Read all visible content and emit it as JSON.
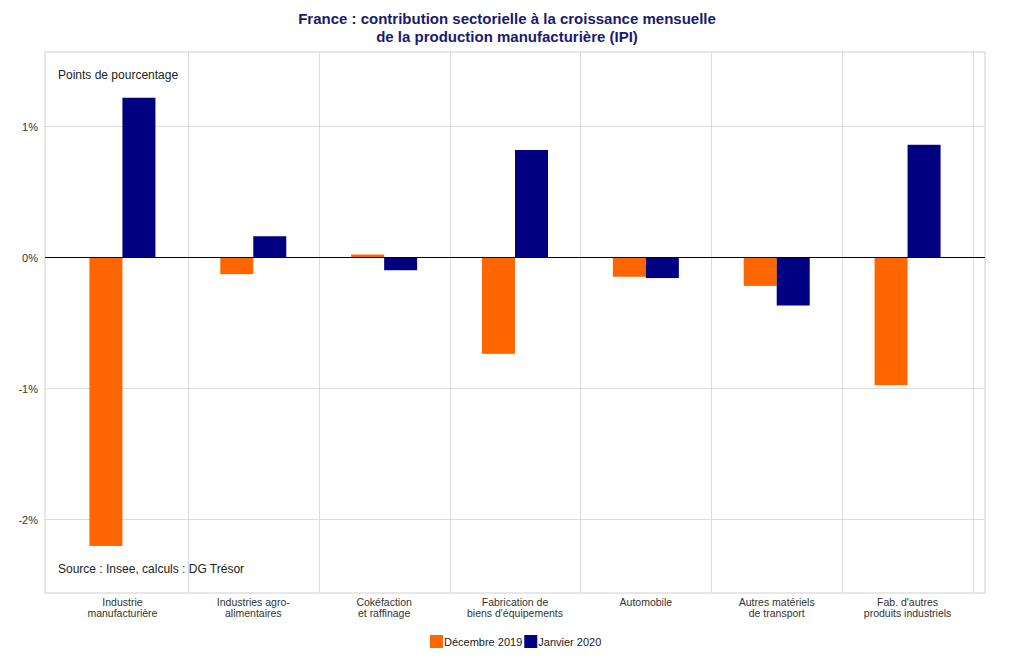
{
  "chart_data": {
    "type": "bar",
    "title": "France : contribution sectorielle à la croissance mensuelle\nde la production manufacturière (IPI)",
    "annotations": [
      "Points de pourcentage",
      "Source : Insee, calculs : DG Trésor"
    ],
    "categories": [
      "Industrie\nmanufacturière",
      "Industries agro-\nalimentaires",
      "Cokéfaction\net raffinage",
      "Fabrication de\nbiens d'équipements",
      "Automobile",
      "Autres matériels\nde transport",
      "Fab. d'autres\nproduits industriels"
    ],
    "series": [
      {
        "name": "Décembre 2019",
        "color": "#ff6600",
        "values": [
          -2.21,
          -0.13,
          0.02,
          -0.74,
          -0.15,
          -0.22,
          -0.98
        ]
      },
      {
        "name": "Janvier 2020",
        "color": "#000080",
        "values": [
          1.22,
          0.16,
          -0.1,
          0.82,
          -0.16,
          -0.37,
          0.86
        ]
      }
    ],
    "ylim": [
      -2.57,
      1.57
    ],
    "yticks": [
      {
        "value": -2,
        "label": "-2%"
      },
      {
        "value": -1,
        "label": "-1%"
      },
      {
        "value": 0,
        "label": "0%"
      },
      {
        "value": 1,
        "label": "1%"
      }
    ],
    "grid": true,
    "legend": "bottom"
  }
}
